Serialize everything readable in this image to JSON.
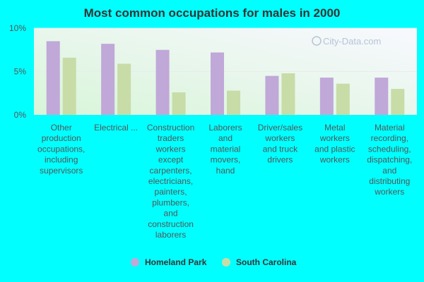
{
  "chart_data": {
    "type": "bar",
    "title": "Most common occupations for males in 2000",
    "xlabel": "",
    "ylabel": "",
    "ylim": [
      0,
      10
    ],
    "y_ticks": [
      "10%",
      "5%",
      "0%"
    ],
    "y_tick_values": [
      10,
      5,
      0
    ],
    "grid": true,
    "legend_position": "bottom",
    "categories": [
      [
        "Other",
        "production",
        "occupations,",
        "including",
        "supervisors"
      ],
      [
        "Electrical ..."
      ],
      [
        "Construction",
        "traders",
        "workers",
        "except",
        "carpenters,",
        "electricians,",
        "painters,",
        "plumbers,",
        "and",
        "construction",
        "laborers"
      ],
      [
        "Laborers",
        "and",
        "material",
        "movers,",
        "hand"
      ],
      [
        "Driver/sales",
        "workers",
        "and truck",
        "drivers"
      ],
      [
        "Metal",
        "workers",
        "and plastic",
        "workers"
      ],
      [
        "Material",
        "recording,",
        "scheduling,",
        "dispatching,",
        "and",
        "distributing",
        "workers"
      ]
    ],
    "series": [
      {
        "name": "Homeland Park",
        "color": "#c0a8d8",
        "values": [
          8.5,
          8.2,
          7.5,
          7.2,
          4.5,
          4.3,
          4.3
        ]
      },
      {
        "name": "South Carolina",
        "color": "#c8dca8",
        "values": [
          6.6,
          5.9,
          2.6,
          2.8,
          4.8,
          3.6,
          3.0
        ]
      }
    ]
  },
  "watermark": "City-Data.com"
}
